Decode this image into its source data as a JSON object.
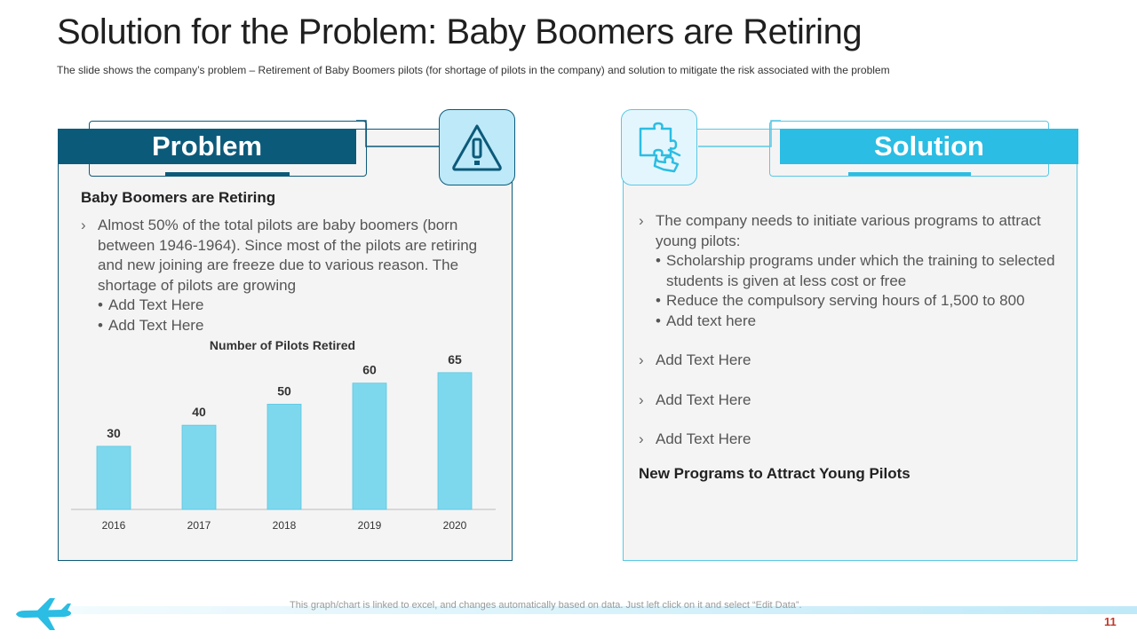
{
  "title": "Solution for the Problem: Baby Boomers are Retiring",
  "subtitle": "The slide shows the company’s problem – Retirement of Baby Boomers pilots (for shortage of pilots in the company) and solution to mitigate the risk associated with the problem",
  "problem": {
    "banner": "Problem",
    "icon": "warning-icon",
    "heading": "Baby Boomers are Retiring",
    "bullet": "Almost 50% of the total pilots are baby boomers (born between 1946-1964). Since most of the pilots are retiring and new joining are freeze  due to various reason. The shortage of pilots are growing",
    "sub_items": [
      "Add Text Here",
      "Add Text Here"
    ]
  },
  "solution": {
    "banner": "Solution",
    "icon": "puzzle-icon",
    "main_bullet": "The company needs to initiate various programs to attract young pilots:",
    "sub_items": [
      "Scholarship programs under which the training to selected students is given at less cost or free",
      "Reduce the compulsory serving hours of 1,500 to 800",
      "Add text here"
    ],
    "extra_bullets": [
      "Add Text Here",
      "Add Text Here",
      "Add Text Here"
    ],
    "footer_heading": "New Programs to Attract Young Pilots"
  },
  "chart_data": {
    "type": "bar",
    "title": "Number of Pilots Retired",
    "categories": [
      "2016",
      "2017",
      "2018",
      "2019",
      "2020"
    ],
    "values": [
      30,
      40,
      50,
      60,
      65
    ],
    "ylim": [
      0,
      70
    ],
    "color": "#7dd8ee",
    "grid": false
  },
  "footnote": "This graph/chart is linked to excel,  and changes automatically based on data. Just left click on it and select “Edit Data”.",
  "page_number": "11",
  "colors": {
    "problem": "#0c5a7a",
    "solution": "#2bbde3",
    "accent_red": "#c0392b"
  }
}
